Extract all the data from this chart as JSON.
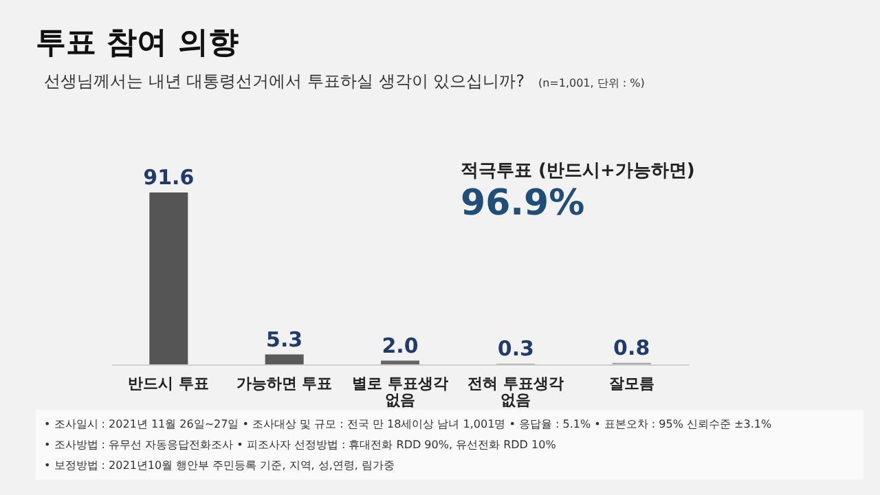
{
  "chart_data": {
    "type": "bar",
    "title": "투표 참여 의향",
    "subtitle": "선생님께서는 내년 대통령선거에서 투표하실 생각이 있으십니까?",
    "categories": [
      "반드시 투표",
      "가능하면 투표",
      "별로 투표생각 없음",
      "전혀 투표생각 없음",
      "잘모름"
    ],
    "values": [
      91.6,
      5.3,
      2.0,
      0.3,
      0.8
    ],
    "colors": [
      "#555555",
      "#5a5a5a",
      "#666666",
      "#8c8c8c",
      "#a6a6a6"
    ],
    "value_labels": [
      "91.6",
      "5.3",
      "2.0",
      "0.3",
      "0.8"
    ],
    "tick_labels": "x",
    "legend": false,
    "annotations": [
      "(n=1,001, 단위 : %)",
      "적극투표 (반드시+가능하면)",
      "96.9%",
      "• 조사일시 : 2021년 11월 26일~27일    • 조사대상 및 규모 : 전국 만 18세이상  남녀  1,001명    • 응답율 :  5.1%    • 표본오차 : 95% 신뢰수준 ±3.1%",
      "• 조사방법 : 유무선 자동응답전화조사    • 피조사자 선정방법 : 휴대전화 RDD  90%, 유선전화 RDD  10%",
      "• 보정방법 : 2021년10월  행안부 주민등록 기준,  지역, 성,연령, 림가중"
    ]
  }
}
